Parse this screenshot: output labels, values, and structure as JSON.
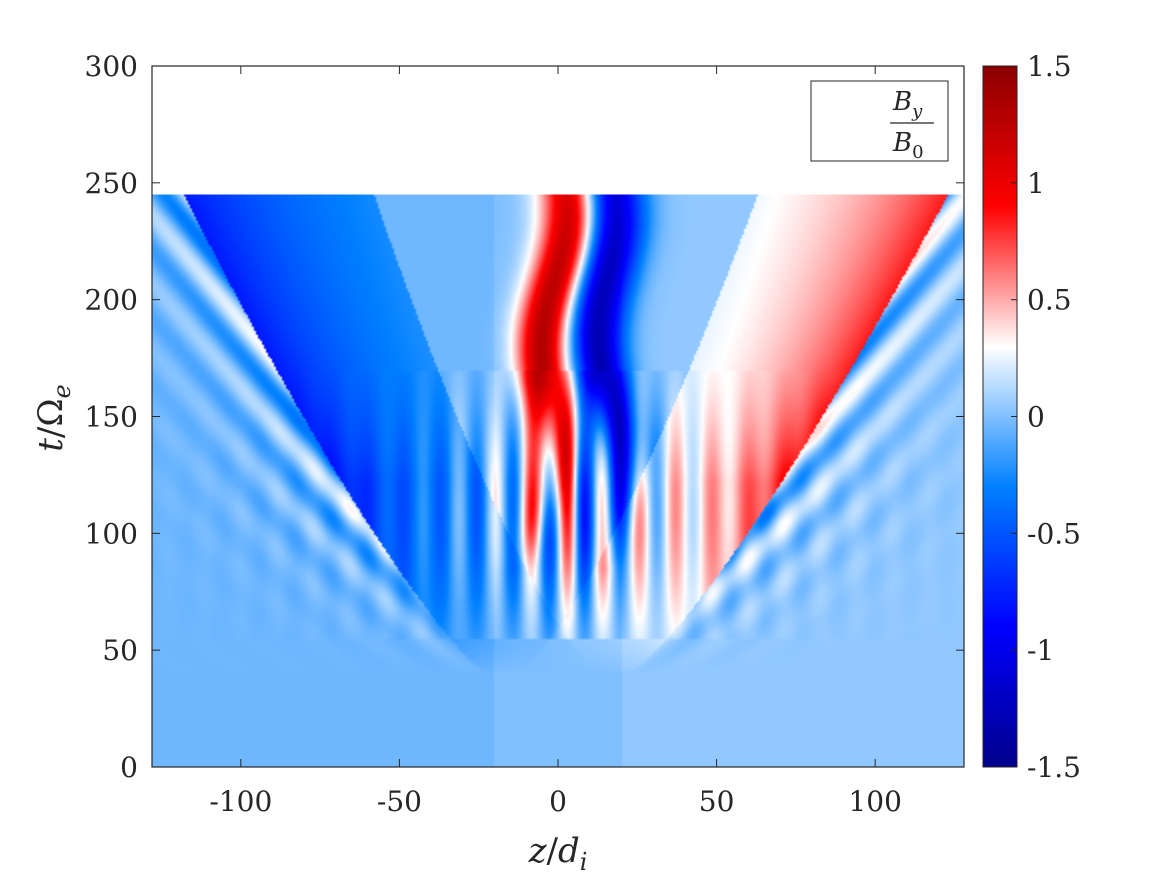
{
  "chart_data": {
    "type": "heatmap",
    "title": "",
    "xlabel_main": "z",
    "xlabel_sub": "d",
    "xlabel_sub_index": "i",
    "ylabel_main": "t",
    "ylabel_sub": "Ω",
    "ylabel_sub_index": "e",
    "xlim": [
      -128,
      128
    ],
    "ylim": [
      0,
      300
    ],
    "data_tmax": 245,
    "x_ticks": [
      -100,
      -50,
      0,
      50,
      100
    ],
    "x_tick_labels": [
      "-100",
      "-50",
      "0",
      "50",
      "100"
    ],
    "y_ticks": [
      0,
      50,
      100,
      150,
      200,
      250,
      300
    ],
    "y_tick_labels": [
      "0",
      "50",
      "100",
      "150",
      "200",
      "250",
      "300"
    ],
    "colorbar": {
      "limits": [
        -1.5,
        1.5
      ],
      "ticks": [
        -1.5,
        -1,
        -0.5,
        0,
        0.5,
        1,
        1.5
      ],
      "tick_labels": [
        "-1.5",
        "-1",
        "-0.5",
        "0",
        "0.5",
        "1",
        "1.5"
      ],
      "colormap": [
        "#00008b",
        "#0000ff",
        "#0080ff",
        "#ffffff",
        "#ff0000",
        "#8b0000"
      ]
    },
    "legend": {
      "location": "top-right",
      "numerator": "B",
      "numerator_sub": "y",
      "denominator": "B",
      "denominator_sub": "0"
    },
    "features": [
      {
        "kind": "front",
        "side": "left",
        "sign": -1,
        "t0": 40,
        "t1": 245,
        "z0": -22,
        "z1": -118,
        "amp": 0.75
      },
      {
        "kind": "front",
        "side": "right",
        "sign": 1,
        "t0": 40,
        "t1": 245,
        "z0": 22,
        "z1": 123,
        "amp": 0.8
      },
      {
        "kind": "core",
        "sign": 1,
        "t0": 85,
        "t1": 245,
        "z0": -8,
        "z1": 2,
        "amp": 1.3
      },
      {
        "kind": "core",
        "sign": -1,
        "t0": 85,
        "t1": 245,
        "z0": 18,
        "z1": 14,
        "amp": 1.3
      }
    ]
  }
}
